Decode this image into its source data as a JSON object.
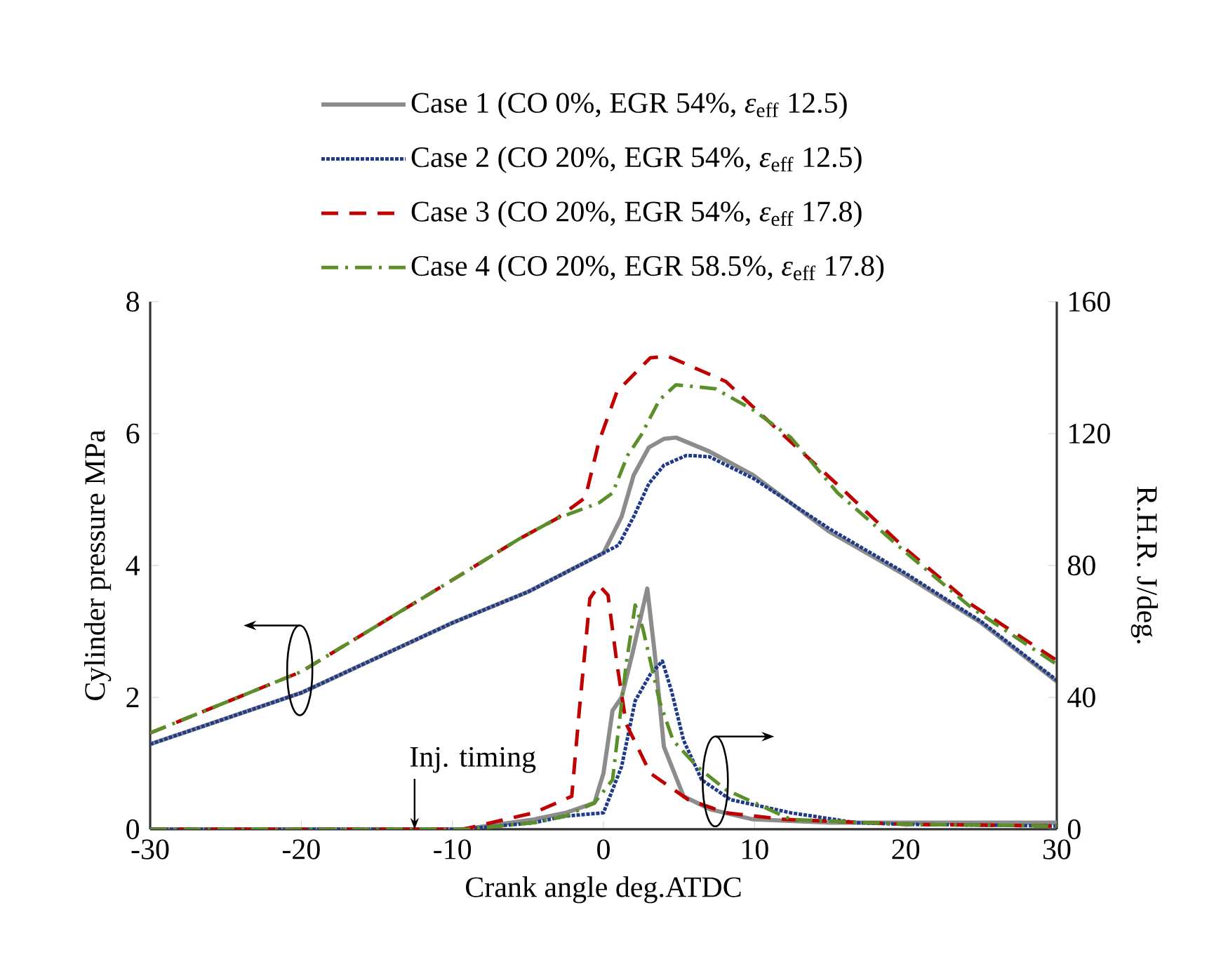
{
  "chart_data": {
    "type": "line",
    "xlabel": "Crank angle deg.ATDC",
    "ylabel": "Cylinder pressure MPa",
    "y2label": "R.H.R. J/deg.",
    "xlim": [
      -30,
      30
    ],
    "xticks": [
      -30,
      -20,
      -10,
      0,
      10,
      20,
      30
    ],
    "ylim": [
      0,
      8
    ],
    "yticks": [
      0,
      2,
      4,
      6,
      8
    ],
    "y2lim": [
      0,
      160
    ],
    "y2ticks": [
      0,
      40,
      80,
      120,
      160
    ],
    "legend": "top",
    "grid": false,
    "marker": "none",
    "annotations": [
      {
        "text": "Inj. timing",
        "x": -12.5,
        "y": 0
      }
    ],
    "series": [
      {
        "name": "Case 1 (CO   0%, EGR 54%, *ε*$_{eff}$ 12.5)",
        "color": "#8c8c8c",
        "line_style": "solid",
        "x": [
          -30,
          -20,
          -10,
          -5,
          0,
          1.2,
          2,
          3,
          4,
          4.8,
          7,
          9.9,
          14.9,
          20,
          25,
          30
        ],
        "values": [
          1.29,
          2.07,
          3.13,
          3.6,
          4.19,
          4.74,
          5.37,
          5.79,
          5.92,
          5.94,
          5.73,
          5.37,
          4.52,
          3.85,
          3.13,
          2.24
        ]
      },
      {
        "name": "Case 2 (CO 20%, EGR 54%, *ε*$_{eff}$ 12.5)",
        "color": "#1f3a8a",
        "line_style": "dotted",
        "x": [
          -30,
          -20,
          -10,
          -5,
          0,
          1,
          2,
          3,
          4,
          5.5,
          7,
          10,
          15,
          20,
          25,
          30
        ],
        "values": [
          1.29,
          2.07,
          3.13,
          3.6,
          4.19,
          4.31,
          4.74,
          5.24,
          5.52,
          5.67,
          5.65,
          5.31,
          4.55,
          3.88,
          3.15,
          2.26
        ]
      },
      {
        "name": "Case 3 (CO 20%, EGR 54%, *ε*$_{eff}$ 17.8)",
        "color": "#c00000",
        "line_style": "dashed",
        "x": [
          -30,
          -20,
          -10,
          -5.6,
          -3.1,
          -1.2,
          -0.3,
          0.9,
          3.1,
          4.3,
          8.1,
          11.8,
          15.8,
          20,
          24.4,
          30
        ],
        "values": [
          1.46,
          2.39,
          3.78,
          4.4,
          4.71,
          5.03,
          5.88,
          6.64,
          7.15,
          7.17,
          6.79,
          6.0,
          5.16,
          4.25,
          3.4,
          2.56
        ]
      },
      {
        "name": "Case 4 (CO 20%, EGR 58.5%, *ε*$_{eff}$ 17.8)",
        "color": "#5b8f2a",
        "line_style": "dashdotted",
        "x": [
          -30,
          -20,
          -10,
          -5.6,
          -3.1,
          -0.3,
          0.6,
          1.6,
          2.5,
          3.7,
          4.8,
          7.4,
          9.9,
          12.4,
          15.5,
          20,
          24.4,
          30
        ],
        "values": [
          1.46,
          2.39,
          3.78,
          4.4,
          4.71,
          4.95,
          5.1,
          5.67,
          5.98,
          6.51,
          6.74,
          6.68,
          6.36,
          5.94,
          5.1,
          4.2,
          3.35,
          2.5
        ]
      },
      {
        "color": "#8c8c8c",
        "line_style": "solid",
        "axis": "y2",
        "x": [
          -30,
          -9.3,
          -4.6,
          -2.5,
          -0.6,
          0,
          0.6,
          1.2,
          1.9,
          2.9,
          3.4,
          4.0,
          5.3,
          7.1,
          9.9,
          15,
          30
        ],
        "values": [
          0,
          0,
          3,
          5,
          8,
          17,
          36,
          40,
          53,
          73,
          53,
          25,
          10,
          6,
          3,
          2,
          2
        ]
      },
      {
        "color": "#1f3a8a",
        "line_style": "dotted",
        "axis": "y2",
        "x": [
          -30,
          -9.3,
          -4.6,
          -2.5,
          0,
          1.2,
          2.1,
          3.1,
          3.9,
          4.5,
          5.3,
          6.5,
          8.4,
          12.4,
          16.7,
          20,
          30
        ],
        "values": [
          0,
          0,
          2,
          4,
          5,
          19,
          39,
          47,
          51,
          42,
          27,
          15,
          9,
          5,
          2,
          1.5,
          1
        ]
      },
      {
        "color": "#c00000",
        "line_style": "dashed",
        "axis": "y2",
        "x": [
          -30,
          -9.3,
          -4.6,
          -2.1,
          -1.6,
          -0.9,
          -0.3,
          0.3,
          0.9,
          1.5,
          3.1,
          5.6,
          8.1,
          12,
          20,
          30
        ],
        "values": [
          0,
          0,
          5,
          10,
          36,
          70,
          74,
          71,
          50,
          32,
          17,
          9,
          5,
          3,
          1.5,
          1
        ]
      },
      {
        "color": "#5b8f2a",
        "line_style": "dashdotted",
        "axis": "y2",
        "x": [
          -30,
          -9,
          -4.6,
          -2.5,
          -0.6,
          0.6,
          1.5,
          2.1,
          2.6,
          3.7,
          4.6,
          6.2,
          8.1,
          12.4,
          20,
          30
        ],
        "values": [
          0,
          0,
          2,
          4,
          8,
          15,
          50,
          68,
          61,
          39,
          27,
          19,
          12,
          3,
          1.5,
          1
        ]
      }
    ]
  }
}
